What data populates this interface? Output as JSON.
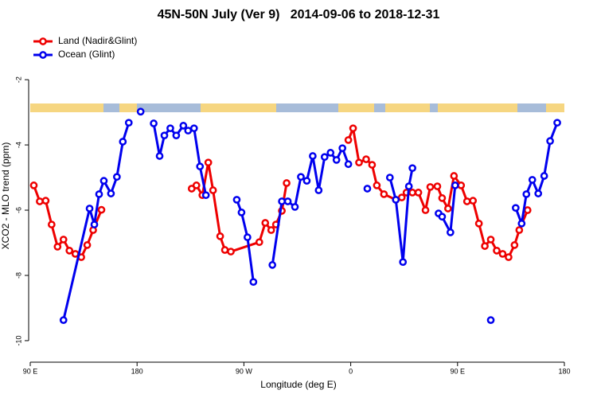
{
  "chart_data": {
    "type": "line",
    "title": "45N-50N July (Ver 9)   2014-09-06 to 2018-12-31",
    "x_label": "Longitude (deg E)",
    "y_label": "XCO2 - MLO trend (ppm)",
    "xlim": [
      90,
      540
    ],
    "xticks": [
      {
        "value": 90,
        "label": "90 E"
      },
      180,
      {
        "value": 270,
        "label": "90 W"
      },
      {
        "value": 360,
        "label": "0"
      },
      {
        "value": 450,
        "label": "90 E"
      },
      {
        "value": 540,
        "label": "180"
      }
    ],
    "ylim": [
      -10.66,
      -0.46
    ],
    "yticks": [
      -2,
      -4,
      -6,
      -8,
      -10
    ],
    "legend": "upper left",
    "series": [
      {
        "name": "Land (Nadir&Glint)",
        "color": "#ee0000",
        "x": [
          93,
          98,
          103,
          108,
          113,
          118,
          123,
          128,
          133,
          138,
          143,
          150,
          null,
          226,
          230,
          235,
          240,
          244,
          250,
          254,
          259,
          283,
          288,
          293,
          297,
          302,
          306,
          null,
          358,
          362,
          367,
          373,
          378,
          382,
          388,
          398,
          403,
          407,
          412,
          417,
          423,
          427,
          433,
          437,
          442,
          447,
          453,
          458,
          463,
          468,
          473,
          478,
          483,
          488,
          493,
          498,
          502,
          509
        ],
        "values": [
          -5.24,
          -5.73,
          -5.71,
          -6.44,
          -7.12,
          -6.9,
          -7.24,
          -7.34,
          -7.44,
          -7.07,
          -6.61,
          -5.99,
          null,
          -5.34,
          -5.24,
          -5.54,
          -4.54,
          -5.39,
          -6.8,
          -7.22,
          -7.27,
          -6.98,
          -6.39,
          -6.61,
          -6.44,
          -6.02,
          -5.17,
          null,
          -3.85,
          -3.49,
          -4.54,
          -4.44,
          -4.61,
          -5.24,
          -5.51,
          -5.68,
          -5.61,
          -5.46,
          -5.46,
          -5.46,
          -6.0,
          -5.29,
          -5.27,
          -5.63,
          -5.95,
          -4.95,
          -5.24,
          -5.73,
          -5.71,
          -6.41,
          -7.1,
          -6.9,
          -7.24,
          -7.34,
          -7.44,
          -7.07,
          -6.61,
          -6.0
        ]
      },
      {
        "name": "Ocean (Glint)",
        "color": "#0000ee",
        "x": [
          118,
          140,
          144,
          148,
          152,
          158,
          163,
          168,
          173,
          null,
          183,
          null,
          194,
          199,
          203,
          208,
          213,
          219,
          223,
          228,
          233,
          238,
          null,
          264,
          268,
          273,
          278,
          null,
          294,
          302,
          307,
          313,
          318,
          323,
          328,
          333,
          338,
          343,
          348,
          353,
          358,
          null,
          374,
          null,
          393,
          398,
          404,
          409,
          412,
          null,
          434,
          437,
          444,
          448,
          null,
          478,
          null,
          499,
          504,
          508,
          513,
          518,
          523,
          528,
          534
        ],
        "values": [
          -9.37,
          -5.95,
          -6.44,
          -5.51,
          -5.1,
          -5.49,
          -4.98,
          -3.9,
          -3.32,
          null,
          -2.98,
          null,
          -3.34,
          -4.34,
          -3.71,
          -3.49,
          -3.71,
          -3.41,
          -3.56,
          -3.49,
          -4.66,
          -5.54,
          null,
          -5.68,
          -6.07,
          -6.83,
          -8.2,
          null,
          -7.68,
          -5.73,
          -5.73,
          -5.9,
          -4.98,
          -5.1,
          -4.34,
          -5.39,
          -4.37,
          -4.24,
          -4.46,
          -4.1,
          -4.59,
          null,
          -5.34,
          null,
          -5.0,
          -5.68,
          -7.59,
          -5.27,
          -4.71,
          null,
          -6.1,
          -6.2,
          -6.68,
          -5.24,
          null,
          -9.37,
          null,
          -5.93,
          -6.41,
          -5.51,
          -5.07,
          -5.49,
          -4.95,
          -3.88,
          -3.32
        ]
      }
    ]
  }
}
